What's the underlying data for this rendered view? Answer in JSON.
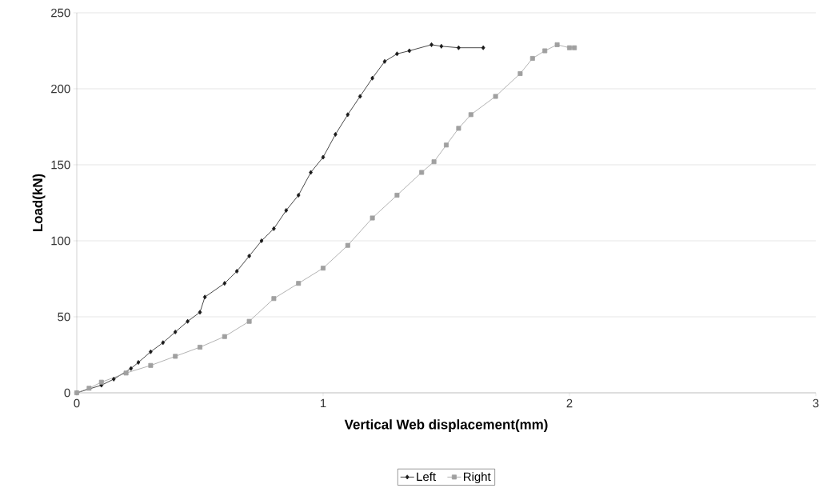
{
  "chart_data": {
    "type": "line",
    "xlabel": "Vertical Web displacement(mm)",
    "ylabel": "Load(kN)",
    "xlim": [
      0,
      3
    ],
    "ylim": [
      0,
      250
    ],
    "xticks": [
      0,
      1,
      2,
      3
    ],
    "yticks": [
      0,
      50,
      100,
      150,
      200,
      250
    ],
    "grid": "y",
    "legend": "bottom",
    "series": [
      {
        "name": "Left",
        "color": "#1a1a1a",
        "marker": "diamond",
        "x": [
          0,
          0.1,
          0.15,
          0.22,
          0.25,
          0.3,
          0.35,
          0.4,
          0.45,
          0.5,
          0.52,
          0.6,
          0.65,
          0.7,
          0.75,
          0.8,
          0.85,
          0.9,
          0.95,
          1.0,
          1.05,
          1.1,
          1.15,
          1.2,
          1.25,
          1.3,
          1.35,
          1.44,
          1.48,
          1.55,
          1.65
        ],
        "values": [
          0,
          5,
          9,
          16,
          20,
          27,
          33,
          40,
          47,
          53,
          63,
          72,
          80,
          90,
          100,
          108,
          120,
          130,
          145,
          155,
          170,
          183,
          195,
          207,
          218,
          223,
          225,
          229,
          228,
          227,
          227
        ]
      },
      {
        "name": "Right",
        "color": "#a0a0a0",
        "marker": "square",
        "x": [
          0,
          0.05,
          0.1,
          0.2,
          0.3,
          0.4,
          0.5,
          0.6,
          0.7,
          0.8,
          0.9,
          1.0,
          1.1,
          1.2,
          1.3,
          1.4,
          1.45,
          1.5,
          1.55,
          1.6,
          1.7,
          1.8,
          1.85,
          1.9,
          1.95,
          2.0,
          2.02
        ],
        "values": [
          0,
          3,
          7,
          13,
          18,
          24,
          30,
          37,
          47,
          62,
          72,
          82,
          97,
          115,
          130,
          145,
          152,
          163,
          174,
          183,
          195,
          210,
          220,
          225,
          229,
          227,
          227
        ]
      }
    ]
  }
}
